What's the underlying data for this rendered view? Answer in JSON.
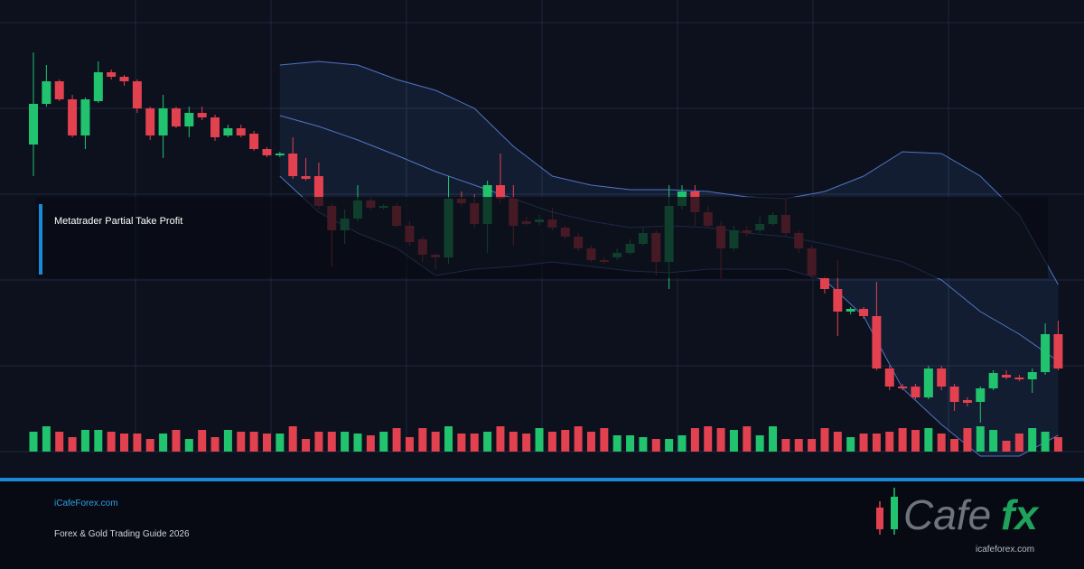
{
  "chart_data": {
    "type": "candlestick",
    "title": "Metatrader Partial Take Profit",
    "ylim": [
      0,
      500
    ],
    "up_color": "#22c36e",
    "down_color": "#e2414f",
    "band_color": "#5b86e0",
    "open": [
      340,
      385,
      410,
      390,
      350,
      388,
      420,
      415,
      410,
      380,
      350,
      380,
      360,
      375,
      370,
      350,
      358,
      352,
      335,
      328,
      330,
      305,
      305,
      272,
      245,
      258,
      278,
      270,
      272,
      250,
      235,
      218,
      215,
      280,
      275,
      252,
      295,
      280,
      255,
      254,
      257,
      248,
      238,
      225,
      212,
      215,
      220,
      230,
      242,
      210,
      272,
      288,
      265,
      250,
      225,
      245,
      245,
      252,
      262,
      242,
      225,
      192,
      180,
      155,
      158,
      150,
      92,
      72,
      72,
      60,
      92,
      72,
      57,
      55,
      70,
      85,
      82,
      80,
      88,
      130
    ],
    "high": [
      442,
      428,
      412,
      395,
      392,
      432,
      423,
      417,
      412,
      382,
      395,
      382,
      382,
      382,
      373,
      362,
      362,
      355,
      337,
      332,
      348,
      325,
      320,
      275,
      268,
      295,
      282,
      274,
      275,
      255,
      238,
      220,
      305,
      288,
      285,
      300,
      330,
      295,
      260,
      262,
      270,
      250,
      242,
      228,
      215,
      225,
      235,
      248,
      245,
      295,
      295,
      295,
      272,
      255,
      250,
      250,
      260,
      265,
      280,
      245,
      228,
      195,
      212,
      160,
      160,
      188,
      95,
      75,
      75,
      95,
      95,
      75,
      60,
      72,
      90,
      90,
      85,
      92,
      142,
      145
    ],
    "low": [
      305,
      382,
      388,
      348,
      335,
      386,
      412,
      405,
      375,
      345,
      325,
      358,
      348,
      367,
      344,
      348,
      348,
      333,
      326,
      326,
      302,
      300,
      268,
      205,
      230,
      255,
      268,
      268,
      248,
      228,
      210,
      202,
      208,
      272,
      248,
      220,
      275,
      228,
      250,
      250,
      245,
      235,
      222,
      210,
      208,
      212,
      218,
      228,
      195,
      180,
      268,
      250,
      248,
      192,
      222,
      238,
      242,
      250,
      238,
      220,
      192,
      175,
      128,
      152,
      147,
      90,
      68,
      68,
      58,
      58,
      68,
      45,
      50,
      32,
      68,
      80,
      78,
      65,
      85,
      90
    ],
    "close": [
      385,
      410,
      390,
      350,
      390,
      420,
      415,
      410,
      380,
      350,
      380,
      360,
      375,
      370,
      348,
      358,
      350,
      335,
      328,
      330,
      305,
      302,
      272,
      245,
      258,
      278,
      270,
      272,
      250,
      232,
      218,
      215,
      280,
      275,
      252,
      295,
      280,
      250,
      252,
      257,
      248,
      238,
      225,
      212,
      210,
      220,
      230,
      242,
      210,
      272,
      288,
      265,
      250,
      225,
      245,
      242,
      252,
      262,
      242,
      225,
      195,
      180,
      155,
      158,
      150,
      92,
      72,
      70,
      60,
      92,
      72,
      55,
      54,
      70,
      87,
      82,
      80,
      88,
      130,
      92
    ],
    "volume": [
      22,
      28,
      22,
      16,
      24,
      24,
      22,
      20,
      20,
      14,
      20,
      24,
      14,
      24,
      16,
      24,
      22,
      22,
      20,
      20,
      28,
      14,
      22,
      22,
      22,
      20,
      18,
      22,
      26,
      16,
      26,
      22,
      28,
      20,
      20,
      22,
      28,
      22,
      20,
      26,
      22,
      24,
      28,
      22,
      26,
      18,
      18,
      16,
      14,
      14,
      18,
      26,
      28,
      26,
      24,
      28,
      18,
      28,
      14,
      14,
      14,
      26,
      22,
      16,
      20,
      20,
      22,
      26,
      24,
      26,
      20,
      14,
      26,
      28,
      24,
      12,
      20,
      26,
      22,
      16
    ],
    "bands": {
      "x": [
        19,
        22,
        25,
        28,
        31,
        34,
        37,
        40,
        43,
        46,
        49,
        52,
        55,
        58,
        61,
        64,
        67,
        70,
        73,
        76,
        79
      ],
      "upper": [
        428,
        432,
        428,
        412,
        400,
        380,
        338,
        305,
        295,
        290,
        290,
        288,
        282,
        280,
        288,
        305,
        332,
        330,
        305,
        262,
        185
      ],
      "middle": [
        372,
        360,
        345,
        328,
        310,
        295,
        280,
        265,
        255,
        248,
        250,
        248,
        242,
        238,
        230,
        220,
        210,
        190,
        155,
        130,
        100
      ],
      "lower": [
        305,
        265,
        242,
        225,
        195,
        202,
        205,
        210,
        205,
        200,
        198,
        202,
        202,
        202,
        190,
        150,
        70,
        30,
        -5,
        -5,
        18
      ]
    }
  },
  "footer": {
    "site": "iCafeForex.com",
    "subtitle": "Forex & Gold Trading Guide 2026"
  },
  "logo": {
    "word": "Cafe",
    "accent": "fx",
    "url": "icafeforex.com"
  }
}
